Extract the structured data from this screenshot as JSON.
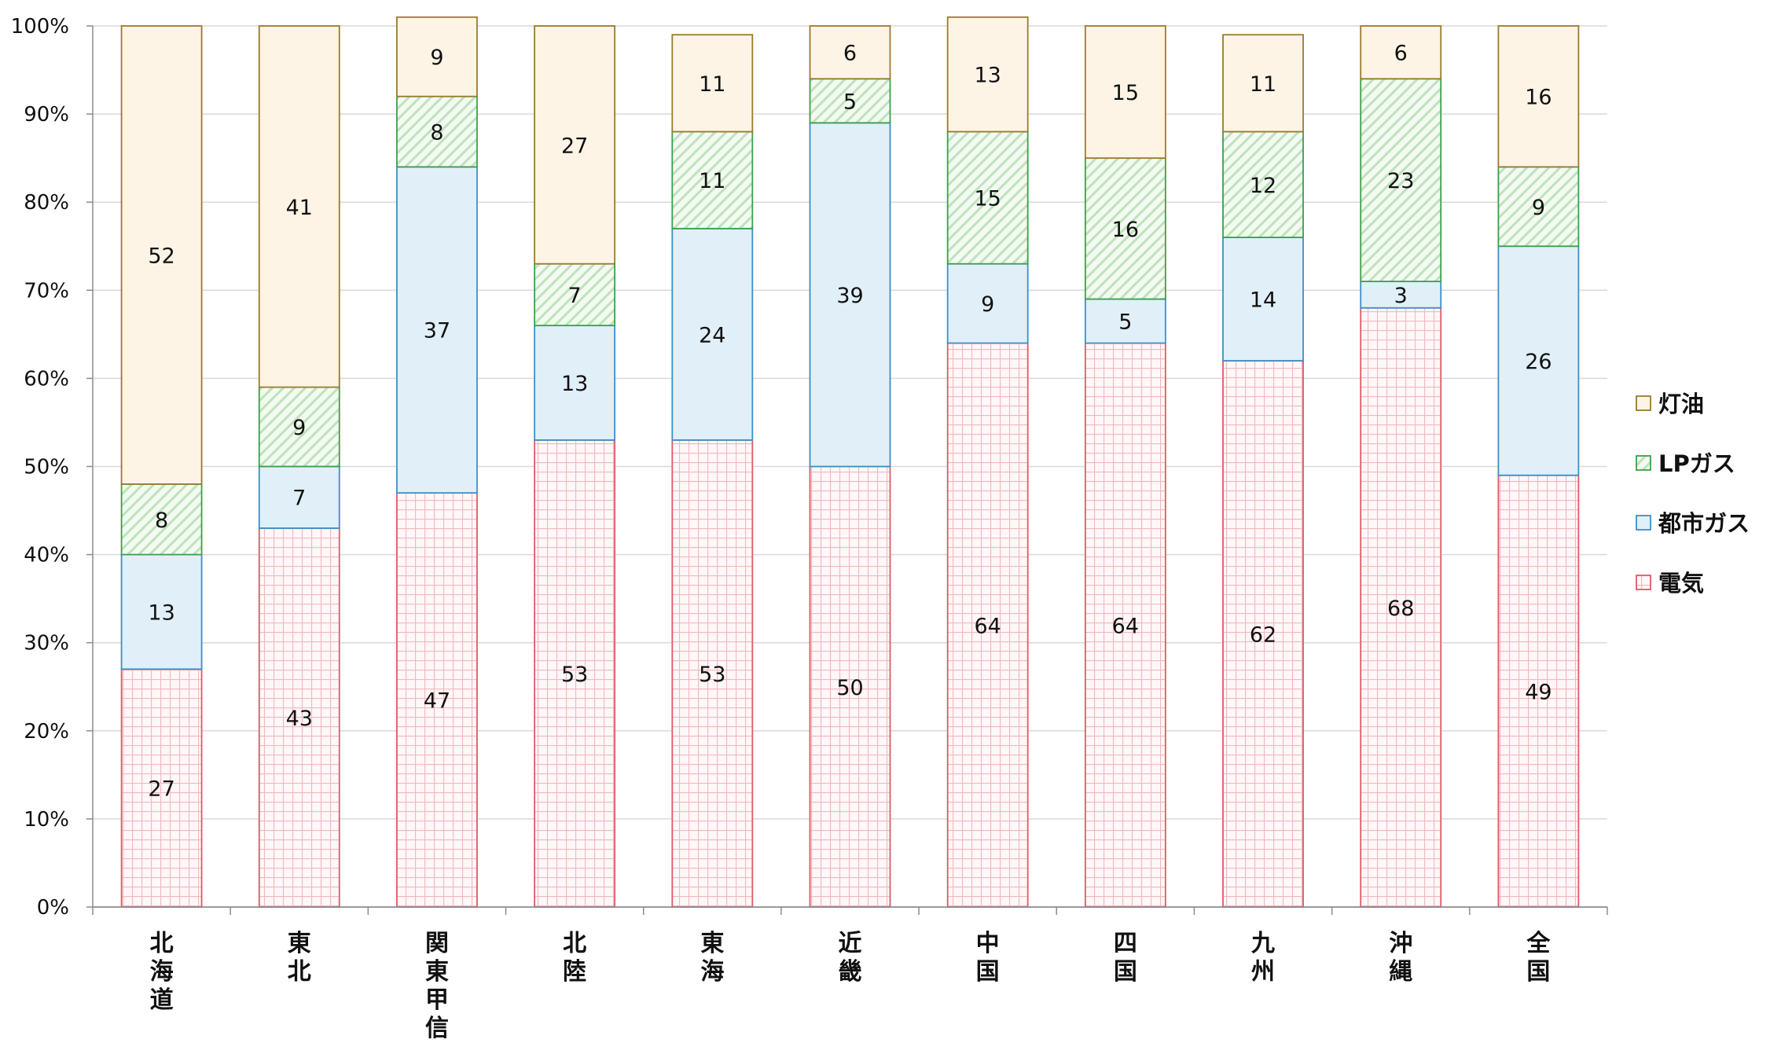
{
  "chart_data": {
    "type": "bar",
    "stacked": true,
    "percent": true,
    "categories": [
      "北海道",
      "東北",
      "関東甲信",
      "北陸",
      "東海",
      "近畿",
      "中国",
      "四国",
      "九州",
      "沖縄",
      "全国"
    ],
    "series": [
      {
        "name": "電気",
        "color": "#e05a66",
        "values": [
          27,
          43,
          47,
          53,
          53,
          50,
          64,
          64,
          62,
          68,
          49
        ]
      },
      {
        "name": "都市ガス",
        "color": "#3c8fca",
        "values": [
          13,
          7,
          37,
          13,
          24,
          39,
          9,
          5,
          14,
          3,
          26
        ]
      },
      {
        "name": "LPガス",
        "color": "#3aa14a",
        "values": [
          8,
          9,
          8,
          7,
          11,
          5,
          15,
          16,
          12,
          23,
          9
        ]
      },
      {
        "name": "灯油",
        "color": "#9c7a2c",
        "values": [
          52,
          41,
          9,
          27,
          11,
          6,
          13,
          15,
          11,
          6,
          16
        ]
      }
    ],
    "ylim": [
      0,
      100
    ],
    "yticks": [
      "0%",
      "10%",
      "20%",
      "30%",
      "40%",
      "50%",
      "60%",
      "70%",
      "80%",
      "90%",
      "100%"
    ],
    "grid": true,
    "legend": "right"
  }
}
